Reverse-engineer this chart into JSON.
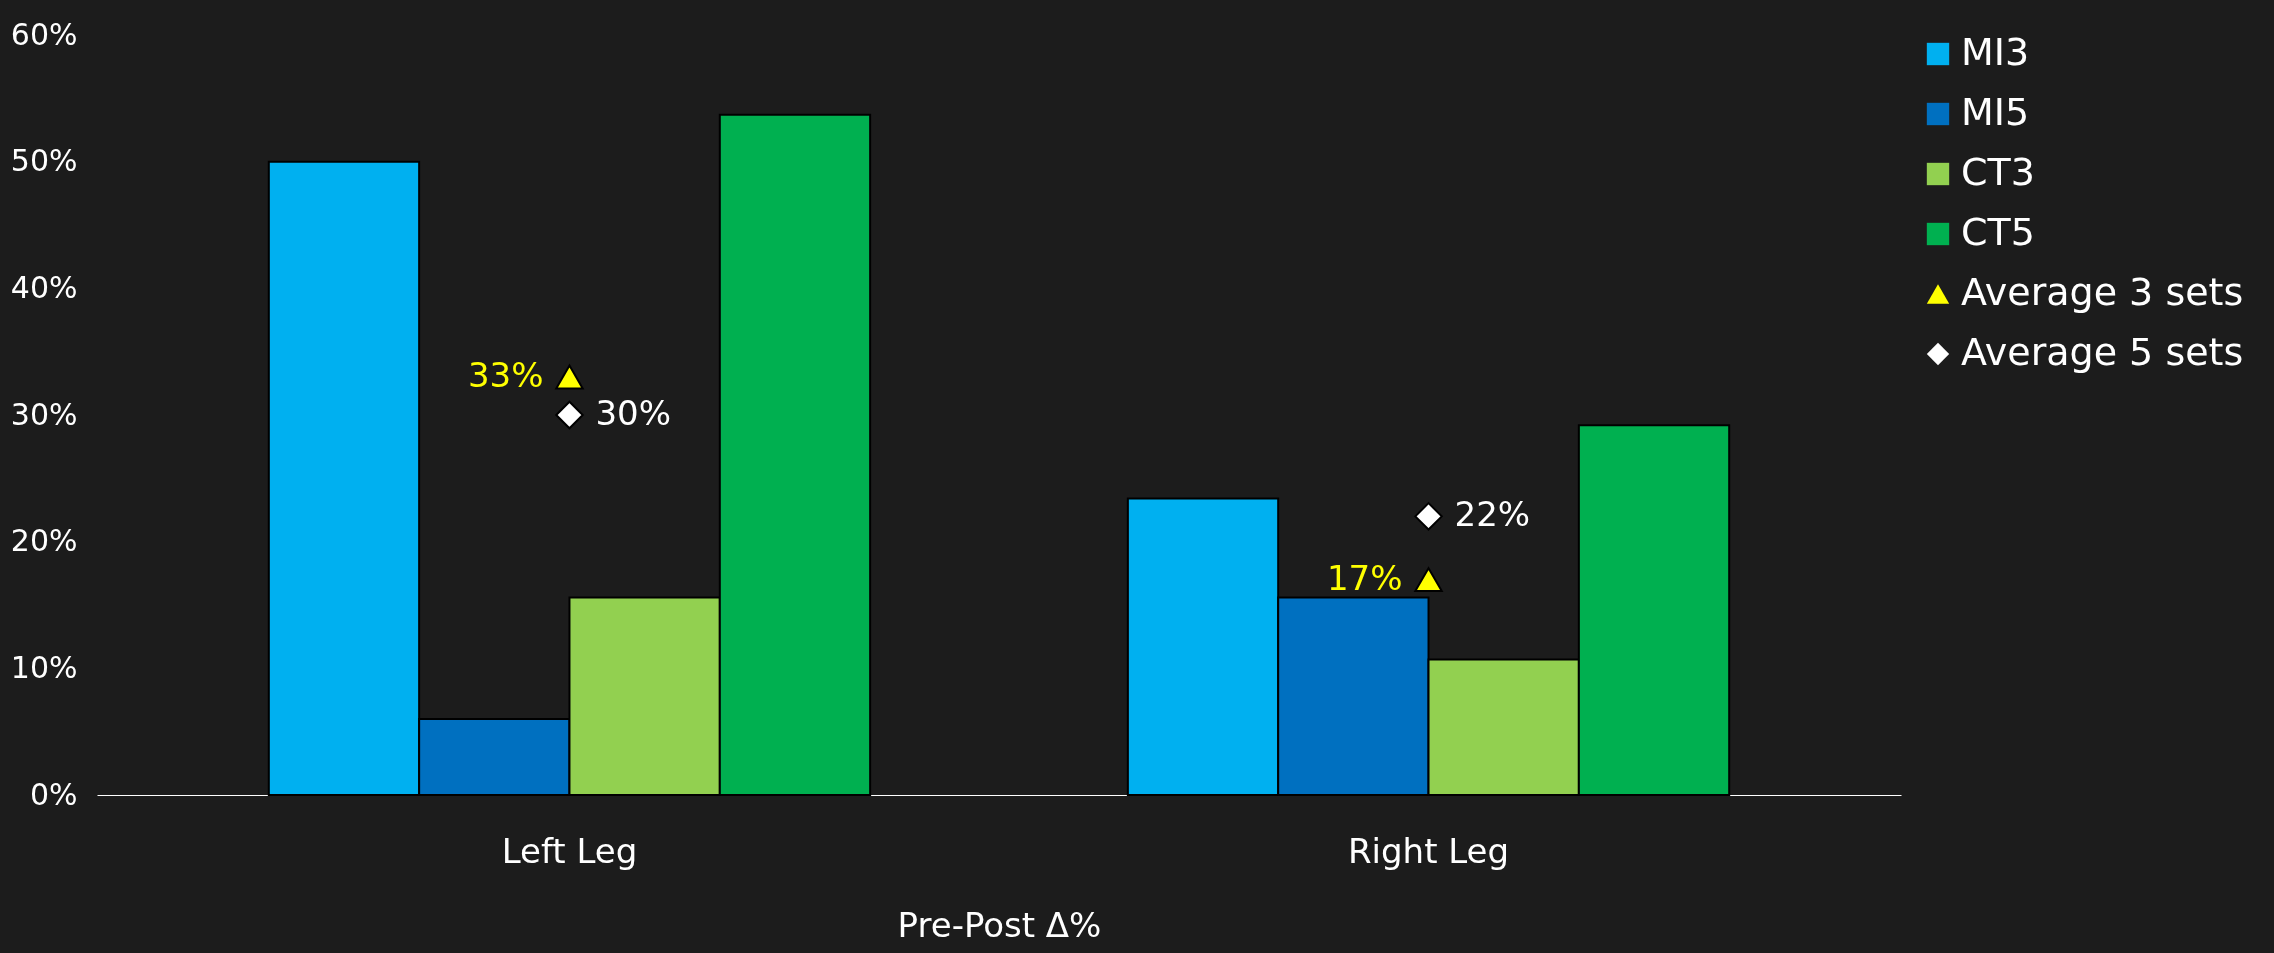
{
  "chart_data": {
    "type": "bar",
    "xlabel": "Pre-Post Δ%",
    "categories": [
      "Left Leg",
      "Right Leg"
    ],
    "ylim": [
      0,
      60
    ],
    "yticks": [
      {
        "value": 0,
        "label": "0%"
      },
      {
        "value": 10,
        "label": "10%"
      },
      {
        "value": 20,
        "label": "20%"
      },
      {
        "value": 30,
        "label": "30%"
      },
      {
        "value": 40,
        "label": "40%"
      },
      {
        "value": 50,
        "label": "50%"
      },
      {
        "value": 60,
        "label": "60%"
      }
    ],
    "legend": "right",
    "grid": false,
    "series": [
      {
        "name": "MI3",
        "color": "#00b0f0",
        "values": [
          50,
          23.4
        ]
      },
      {
        "name": "MI5",
        "color": "#0070c0",
        "values": [
          6,
          15.6
        ]
      },
      {
        "name": "CT3",
        "color": "#92d050",
        "values": [
          15.6,
          10.7
        ]
      },
      {
        "name": "CT5",
        "color": "#00b050",
        "values": [
          53.7,
          29.2
        ]
      },
      {
        "name": "Average 3 sets",
        "type": "scatter",
        "marker": "triangle",
        "color": "#ffff00",
        "values": [
          33,
          17
        ],
        "value_labels": [
          "33%",
          "17%"
        ],
        "x": [
          "Left Leg",
          "Right Leg"
        ]
      },
      {
        "name": "Average 5 sets",
        "type": "scatter",
        "marker": "diamond",
        "color": "#ffffff",
        "values": [
          30,
          22
        ],
        "value_labels": [
          "30%",
          "22%"
        ],
        "x": [
          "Left Leg",
          "Right Leg"
        ]
      }
    ]
  }
}
